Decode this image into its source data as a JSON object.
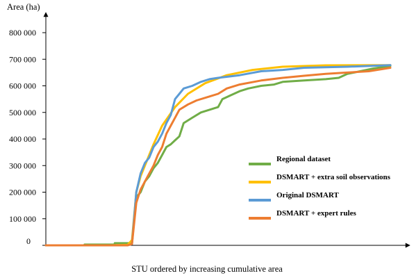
{
  "chart_data": {
    "type": "line",
    "title": "",
    "ylabel": "Area (ha)",
    "xlabel": "STU ordered by increasing cumulative area",
    "ylim": [
      0,
      800000
    ],
    "xlim": [
      0,
      100
    ],
    "y_ticks": [
      0,
      100000,
      200000,
      300000,
      400000,
      500000,
      600000,
      700000,
      800000
    ],
    "y_tick_labels": [
      "0",
      "100 000",
      "200 000",
      "300 000",
      "400 000",
      "500 000",
      "600 000",
      "700 000",
      "800 000"
    ],
    "grid": false,
    "legend_position": "lower-right",
    "series": [
      {
        "name": "Regional dataset",
        "color": "#70ad47",
        "values": [
          [
            0,
            0
          ],
          [
            9,
            0
          ],
          [
            9,
            3000
          ],
          [
            16,
            3000
          ],
          [
            16,
            8000
          ],
          [
            20,
            8000
          ],
          [
            21,
            180000
          ],
          [
            22,
            200000
          ],
          [
            23,
            240000
          ],
          [
            24,
            260000
          ],
          [
            25,
            290000
          ],
          [
            26,
            310000
          ],
          [
            27,
            340000
          ],
          [
            28,
            370000
          ],
          [
            29,
            380000
          ],
          [
            30,
            395000
          ],
          [
            31,
            410000
          ],
          [
            32,
            460000
          ],
          [
            34,
            480000
          ],
          [
            36,
            500000
          ],
          [
            38,
            510000
          ],
          [
            40,
            520000
          ],
          [
            41,
            550000
          ],
          [
            43,
            565000
          ],
          [
            45,
            580000
          ],
          [
            47,
            590000
          ],
          [
            50,
            600000
          ],
          [
            53,
            605000
          ],
          [
            55,
            615000
          ],
          [
            60,
            620000
          ],
          [
            65,
            625000
          ],
          [
            68,
            630000
          ],
          [
            70,
            645000
          ],
          [
            73,
            655000
          ],
          [
            76,
            665000
          ],
          [
            80,
            675000
          ]
        ]
      },
      {
        "name": "DSMART + extra soil observations",
        "color": "#ffc000",
        "values": [
          [
            0,
            0
          ],
          [
            15,
            0
          ],
          [
            19,
            2000
          ],
          [
            20,
            20000
          ],
          [
            21,
            200000
          ],
          [
            22,
            260000
          ],
          [
            23,
            300000
          ],
          [
            25,
            380000
          ],
          [
            27,
            450000
          ],
          [
            30,
            520000
          ],
          [
            33,
            570000
          ],
          [
            37,
            610000
          ],
          [
            42,
            640000
          ],
          [
            48,
            660000
          ],
          [
            55,
            672000
          ],
          [
            65,
            677000
          ],
          [
            80,
            678000
          ]
        ]
      },
      {
        "name": "Original DSMART",
        "color": "#5b9bd5",
        "values": [
          [
            0,
            0
          ],
          [
            19,
            0
          ],
          [
            20,
            5000
          ],
          [
            21,
            200000
          ],
          [
            22,
            270000
          ],
          [
            23,
            310000
          ],
          [
            24,
            330000
          ],
          [
            25,
            370000
          ],
          [
            26,
            390000
          ],
          [
            27,
            420000
          ],
          [
            28,
            460000
          ],
          [
            29,
            490000
          ],
          [
            30,
            550000
          ],
          [
            31,
            570000
          ],
          [
            32,
            590000
          ],
          [
            34,
            600000
          ],
          [
            36,
            615000
          ],
          [
            38,
            625000
          ],
          [
            40,
            630000
          ],
          [
            45,
            640000
          ],
          [
            50,
            655000
          ],
          [
            55,
            660000
          ],
          [
            60,
            668000
          ],
          [
            70,
            672000
          ],
          [
            80,
            678000
          ]
        ]
      },
      {
        "name": "DSMART + expert rules",
        "color": "#ed7d31",
        "values": [
          [
            0,
            0
          ],
          [
            19,
            0
          ],
          [
            20,
            5000
          ],
          [
            21,
            160000
          ],
          [
            22,
            210000
          ],
          [
            23,
            240000
          ],
          [
            24,
            270000
          ],
          [
            25,
            300000
          ],
          [
            26,
            340000
          ],
          [
            27,
            370000
          ],
          [
            28,
            420000
          ],
          [
            29,
            450000
          ],
          [
            30,
            480000
          ],
          [
            31,
            510000
          ],
          [
            33,
            530000
          ],
          [
            35,
            545000
          ],
          [
            38,
            560000
          ],
          [
            40,
            570000
          ],
          [
            42,
            590000
          ],
          [
            45,
            605000
          ],
          [
            50,
            620000
          ],
          [
            55,
            630000
          ],
          [
            60,
            638000
          ],
          [
            65,
            645000
          ],
          [
            70,
            650000
          ],
          [
            75,
            655000
          ],
          [
            80,
            668000
          ]
        ]
      }
    ]
  }
}
